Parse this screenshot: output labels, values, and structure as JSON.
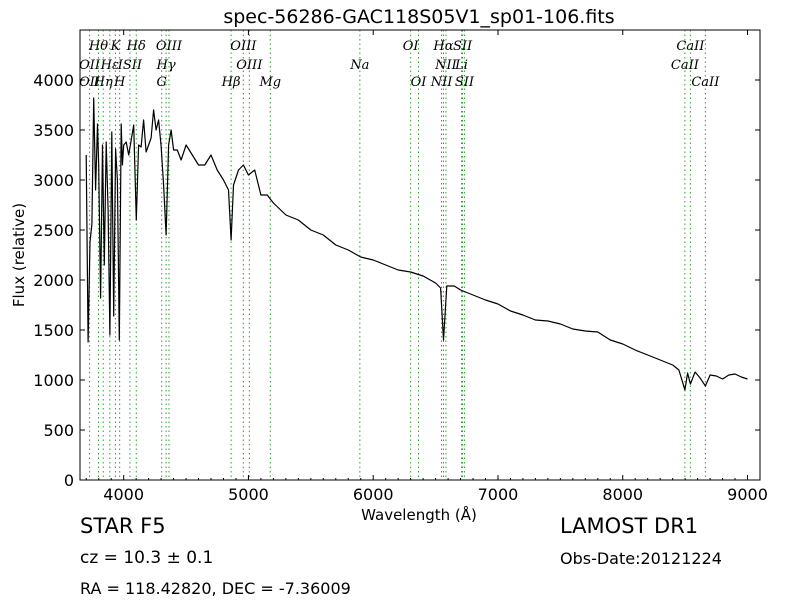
{
  "chart_data": {
    "type": "line",
    "title": "spec-56286-GAC118S05V1_sp01-106.fits",
    "xlabel": "Wavelength (Å)",
    "ylabel": "Flux (relative)",
    "xlim": [
      3650,
      9100
    ],
    "ylim": [
      0,
      4500
    ],
    "xticks": [
      4000,
      5000,
      6000,
      7000,
      8000,
      9000
    ],
    "yticks": [
      0,
      500,
      1000,
      1500,
      2000,
      2500,
      3000,
      3500,
      4000
    ],
    "grid": false,
    "line_color": "#000000",
    "marker_color": "#2ca02c",
    "series": [
      {
        "x": [
          3700,
          3715,
          3730,
          3745,
          3760,
          3775,
          3790,
          3800,
          3815,
          3830,
          3845,
          3860,
          3875,
          3890,
          3905,
          3920,
          3935,
          3950,
          3965,
          3980,
          3990,
          4000,
          4020,
          4040,
          4060,
          4080,
          4101,
          4120,
          4140,
          4160,
          4180,
          4200,
          4220,
          4240,
          4260,
          4280,
          4300,
          4320,
          4340,
          4360,
          4380,
          4400,
          4430,
          4460,
          4500,
          4550,
          4600,
          4650,
          4700,
          4750,
          4800,
          4840,
          4861,
          4880,
          4920,
          4960,
          5000,
          5050,
          5100,
          5150,
          5200,
          5300,
          5400,
          5500,
          5600,
          5700,
          5800,
          5900,
          6000,
          6100,
          6200,
          6300,
          6400,
          6500,
          6540,
          6563,
          6590,
          6650,
          6700,
          6800,
          6900,
          7000,
          7100,
          7200,
          7300,
          7400,
          7500,
          7600,
          7700,
          7800,
          7900,
          8000,
          8100,
          8200,
          8300,
          8400,
          8450,
          8498,
          8520,
          8542,
          8580,
          8620,
          8662,
          8700,
          8750,
          8800,
          8850,
          8900,
          8950,
          9000
        ],
        "y": [
          3250,
          1380,
          2380,
          2560,
          3820,
          2900,
          3560,
          3140,
          1820,
          3350,
          2150,
          3380,
          2700,
          1450,
          3480,
          1640,
          3310,
          3000,
          1400,
          3560,
          3150,
          3350,
          3380,
          3250,
          3400,
          3550,
          2600,
          3350,
          3330,
          3600,
          3280,
          3350,
          3420,
          3700,
          3500,
          3600,
          3340,
          2950,
          2450,
          3350,
          3500,
          3300,
          3300,
          3200,
          3350,
          3250,
          3150,
          3150,
          3250,
          3100,
          3000,
          2900,
          2400,
          2950,
          3100,
          3150,
          3050,
          3100,
          2850,
          2850,
          2770,
          2650,
          2600,
          2500,
          2450,
          2350,
          2300,
          2230,
          2200,
          2150,
          2100,
          2080,
          2040,
          1970,
          1920,
          1400,
          1940,
          1940,
          1900,
          1850,
          1800,
          1760,
          1690,
          1650,
          1600,
          1590,
          1560,
          1510,
          1490,
          1480,
          1400,
          1360,
          1300,
          1250,
          1200,
          1150,
          1100,
          900,
          1070,
          960,
          1080,
          1020,
          940,
          1050,
          1040,
          1010,
          1050,
          1060,
          1030,
          1010
        ]
      }
    ],
    "lines": [
      {
        "label": "Hθ",
        "x": 3798,
        "row": 0
      },
      {
        "label": "K",
        "x": 3934,
        "row": 0
      },
      {
        "label": "Hδ",
        "x": 4101,
        "row": 0
      },
      {
        "label": "OIII",
        "x": 4363,
        "row": 0
      },
      {
        "label": "OIII",
        "x": 4959,
        "row": 0
      },
      {
        "label": "OI",
        "x": 6300,
        "row": 0
      },
      {
        "label": "Hα",
        "x": 6563,
        "row": 0
      },
      {
        "label": "SII",
        "x": 6716,
        "row": 0
      },
      {
        "label": "CaII",
        "x": 8542,
        "row": 0
      },
      {
        "label": "OII",
        "x": 3727,
        "row": 1
      },
      {
        "label": "Hε",
        "x": 3889,
        "row": 1
      },
      {
        "label": "ISII",
        "x": 4050,
        "row": 1
      },
      {
        "label": "Hγ",
        "x": 4340,
        "row": 1
      },
      {
        "label": "OIII",
        "x": 5007,
        "row": 1
      },
      {
        "label": "Na",
        "x": 5893,
        "row": 1
      },
      {
        "label": "NII",
        "x": 6583,
        "row": 1
      },
      {
        "label": "Li",
        "x": 6708,
        "row": 1
      },
      {
        "label": "CaII",
        "x": 8498,
        "row": 1
      },
      {
        "label": "OII",
        "x": 3727,
        "row": 2
      },
      {
        "label": "Hη",
        "x": 3836,
        "row": 2
      },
      {
        "label": "H",
        "x": 3968,
        "row": 2
      },
      {
        "label": "G",
        "x": 4305,
        "row": 2
      },
      {
        "label": "Hβ",
        "x": 4861,
        "row": 2
      },
      {
        "label": "Mg",
        "x": 5175,
        "row": 2
      },
      {
        "label": "OI",
        "x": 6363,
        "row": 2
      },
      {
        "label": "NII",
        "x": 6548,
        "row": 2
      },
      {
        "label": "SII",
        "x": 6731,
        "row": 2
      },
      {
        "label": "CaII",
        "x": 8662,
        "row": 2
      }
    ]
  },
  "info": {
    "object_class": "STAR   F5",
    "survey": "LAMOST DR1",
    "redshift": "cz = 10.3  ± 0.1",
    "obs_date": "Obs-Date:20121224",
    "coords": "RA = 118.42820, DEC = -7.36009"
  }
}
